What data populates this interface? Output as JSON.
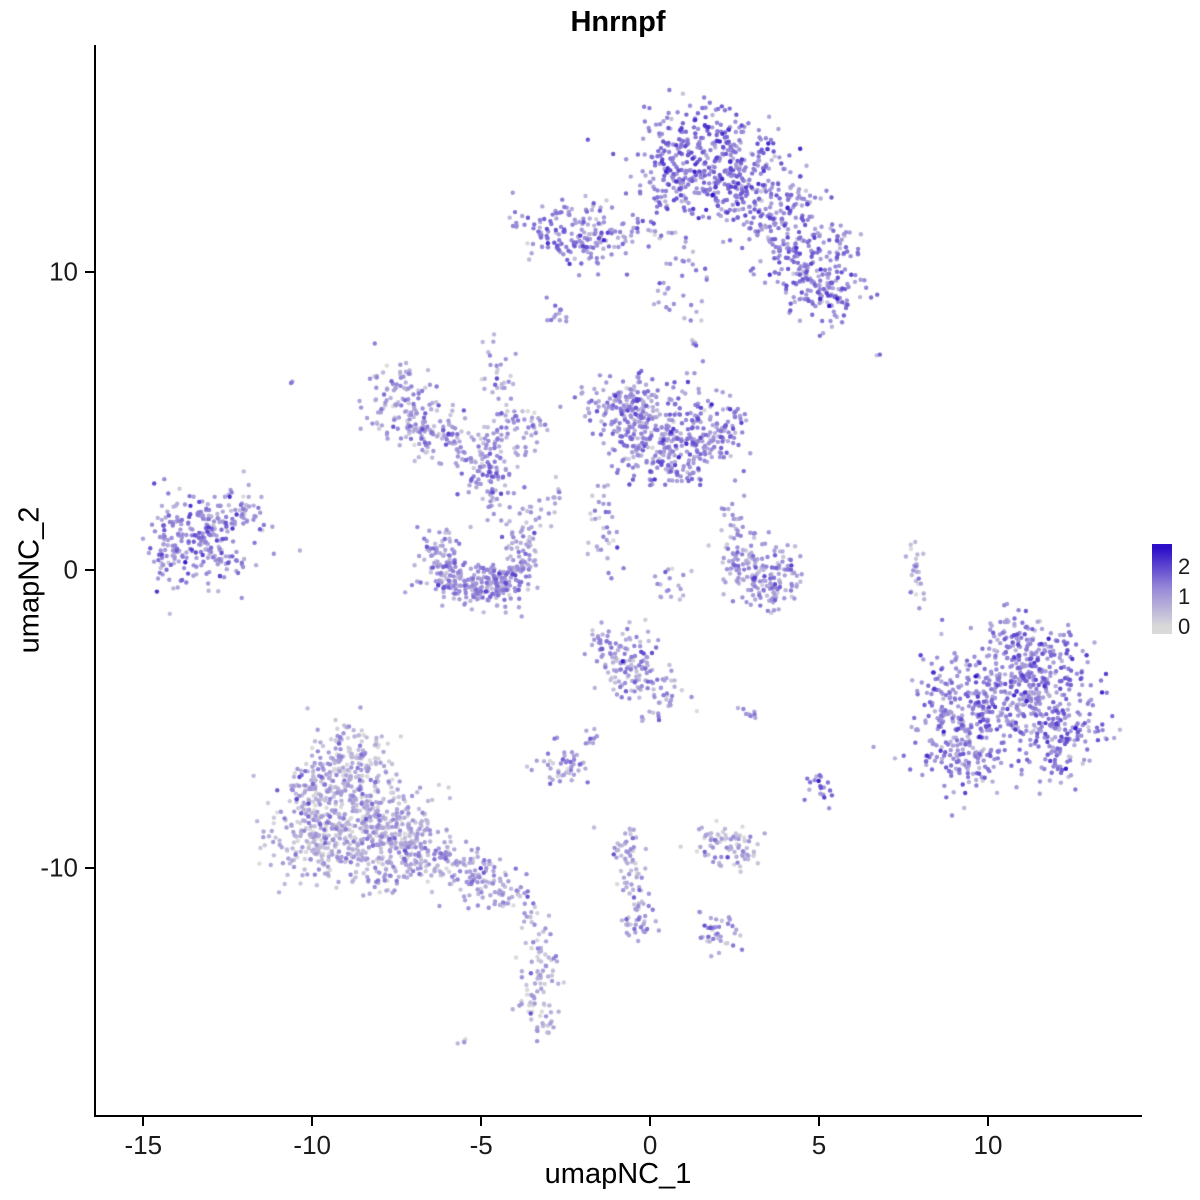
{
  "title": "Hnrnpf",
  "axes": {
    "x": {
      "label": "umapNC_1"
    },
    "y": {
      "label": "umapNC_2"
    }
  },
  "chart_data": {
    "type": "scatter",
    "title": "Hnrnpf",
    "xlabel": "umapNC_1",
    "ylabel": "umapNC_2",
    "xlim": [
      -16.4,
      14.5
    ],
    "ylim": [
      -18.3,
      17.6
    ],
    "x_ticks": [
      {
        "v": -15,
        "label": "-15"
      },
      {
        "v": -10,
        "label": "-10"
      },
      {
        "v": -5,
        "label": "-5"
      },
      {
        "v": 0,
        "label": "0"
      },
      {
        "v": 5,
        "label": "5"
      },
      {
        "v": 10,
        "label": "10"
      }
    ],
    "y_ticks": [
      {
        "v": 10,
        "label": "10"
      },
      {
        "v": 0,
        "label": "0"
      },
      {
        "v": -10,
        "label": "-10"
      }
    ],
    "grid": false,
    "legend_position": "right",
    "color_scale": {
      "low_label": "0",
      "high_label": "2",
      "stops": [
        {
          "v": 0.0,
          "color": "#D9D9D9"
        },
        {
          "v": 1.25,
          "color": "#9A8BD8"
        },
        {
          "v": 2.6,
          "color": "#2E0FC9"
        }
      ]
    },
    "legend": {
      "range": [
        -0.25,
        2.75
      ],
      "ticks": [
        {
          "v": 2,
          "label": "2"
        },
        {
          "v": 1,
          "label": "1"
        },
        {
          "v": 0,
          "label": "0"
        }
      ]
    },
    "point_radius": 2.2,
    "seed": 42,
    "cluster_format": "[center_x, center_y, sd_x, sd_y, n_points, mean_expression, sd_expression(optional, default 0.45), rotation_rad(optional, default 0)]",
    "clusters": [
      [
        1.6,
        14.0,
        1.05,
        0.75,
        300,
        1.45
      ],
      [
        2.2,
        13.0,
        0.6,
        0.5,
        90,
        1.35
      ],
      [
        0.7,
        12.6,
        0.45,
        0.45,
        50,
        1.3
      ],
      [
        3.1,
        12.3,
        0.7,
        0.55,
        90,
        1.3
      ],
      [
        3.9,
        11.3,
        0.6,
        0.7,
        90,
        1.25
      ],
      [
        4.7,
        10.1,
        0.55,
        0.7,
        100,
        1.3
      ],
      [
        5.3,
        9.2,
        0.5,
        0.55,
        80,
        1.4
      ],
      [
        4.4,
        12.4,
        0.35,
        0.4,
        30,
        1.2
      ],
      [
        5.6,
        10.9,
        0.3,
        0.4,
        25,
        1.2
      ],
      [
        -0.1,
        11.4,
        0.7,
        0.35,
        30,
        1.2
      ],
      [
        0.9,
        10.6,
        0.4,
        0.6,
        20,
        1.15
      ],
      [
        1.3,
        7.8,
        0.25,
        0.7,
        14,
        1.1
      ],
      [
        0.3,
        9.0,
        0.3,
        0.4,
        10,
        1.1
      ],
      [
        -2.4,
        11.3,
        0.8,
        0.5,
        140,
        1.3
      ],
      [
        -1.5,
        10.8,
        0.35,
        0.35,
        30,
        1.2
      ],
      [
        -2.8,
        8.6,
        0.15,
        0.2,
        12,
        1.15
      ],
      [
        -10.7,
        6.3,
        0.05,
        0.05,
        2,
        1.0
      ],
      [
        6.8,
        7.2,
        0.05,
        0.05,
        2,
        1.0
      ],
      [
        -7.4,
        5.8,
        0.55,
        0.6,
        100,
        1.0
      ],
      [
        -6.7,
        4.7,
        0.5,
        0.5,
        60,
        0.95
      ],
      [
        -5.7,
        4.2,
        0.55,
        0.4,
        55,
        0.95
      ],
      [
        -4.8,
        3.5,
        0.45,
        0.45,
        70,
        1.05
      ],
      [
        -4.3,
        4.9,
        0.3,
        0.6,
        35,
        0.9
      ],
      [
        -3.4,
        4.7,
        0.35,
        0.4,
        25,
        0.9
      ],
      [
        -4.6,
        6.4,
        0.25,
        0.65,
        25,
        0.9
      ],
      [
        -4.6,
        2.4,
        0.3,
        0.5,
        30,
        1.0
      ],
      [
        -2.7,
        2.4,
        0.2,
        0.5,
        12,
        0.9
      ],
      [
        -0.9,
        5.6,
        0.55,
        0.55,
        110,
        1.2
      ],
      [
        0.2,
        4.9,
        0.75,
        0.65,
        150,
        1.1
      ],
      [
        1.5,
        4.3,
        0.65,
        0.6,
        110,
        1.3
      ],
      [
        0.5,
        3.4,
        0.55,
        0.4,
        70,
        1.2
      ],
      [
        -0.5,
        4.2,
        0.4,
        0.4,
        50,
        1.05
      ],
      [
        2.3,
        4.9,
        0.35,
        0.4,
        35,
        1.25
      ],
      [
        -1.4,
        1.9,
        0.25,
        0.6,
        22,
        1.0
      ],
      [
        -1.2,
        0.6,
        0.2,
        0.4,
        12,
        1.0
      ],
      [
        -13.2,
        1.0,
        0.85,
        0.75,
        240,
        1.2
      ],
      [
        -12.1,
        2.2,
        0.35,
        0.4,
        30,
        1.1
      ],
      [
        -14.2,
        0.3,
        0.3,
        0.4,
        25,
        1.1
      ],
      [
        -6.3,
        0.7,
        0.28,
        0.5,
        45,
        1.0
      ],
      [
        -5.9,
        -0.2,
        0.45,
        0.4,
        80,
        1.05
      ],
      [
        -5.0,
        -0.55,
        0.5,
        0.35,
        110,
        1.1
      ],
      [
        -4.2,
        -0.25,
        0.4,
        0.4,
        75,
        1.0
      ],
      [
        -3.8,
        0.6,
        0.28,
        0.45,
        45,
        0.9
      ],
      [
        -3.5,
        1.7,
        0.2,
        0.4,
        15,
        0.9
      ],
      [
        0.5,
        -0.5,
        0.35,
        0.25,
        18,
        1.0,
        0.4,
        0.6
      ],
      [
        2.6,
        0.8,
        0.3,
        0.5,
        40,
        1.0
      ],
      [
        3.0,
        -0.1,
        0.4,
        0.5,
        70,
        1.1
      ],
      [
        3.6,
        -0.7,
        0.4,
        0.35,
        55,
        1.0
      ],
      [
        4.1,
        0.2,
        0.25,
        0.45,
        30,
        0.9
      ],
      [
        2.4,
        1.9,
        0.2,
        0.3,
        10,
        0.95
      ],
      [
        7.9,
        0.1,
        0.12,
        0.55,
        25,
        0.7
      ],
      [
        10.4,
        -4.3,
        1.25,
        1.05,
        400,
        1.3
      ],
      [
        11.6,
        -3.3,
        0.75,
        0.65,
        120,
        1.4
      ],
      [
        9.3,
        -6.2,
        0.7,
        0.6,
        120,
        1.25
      ],
      [
        12.3,
        -5.4,
        0.6,
        0.6,
        90,
        1.25
      ],
      [
        10.9,
        -2.3,
        0.7,
        0.4,
        55,
        1.15
      ],
      [
        8.6,
        -4.9,
        0.4,
        0.5,
        45,
        1.2
      ],
      [
        11.9,
        -6.6,
        0.4,
        0.4,
        35,
        1.2
      ],
      [
        -0.6,
        -3.2,
        0.55,
        0.55,
        105,
        1.0
      ],
      [
        0.3,
        -4.2,
        0.4,
        0.4,
        40,
        0.95
      ],
      [
        -1.2,
        -2.3,
        0.3,
        0.3,
        25,
        1.0
      ],
      [
        2.9,
        -4.9,
        0.15,
        0.15,
        10,
        0.95
      ],
      [
        -2.6,
        -6.6,
        0.4,
        0.3,
        45,
        0.95
      ],
      [
        -1.8,
        -5.9,
        0.15,
        0.25,
        8,
        0.9
      ],
      [
        -8.8,
        -8.3,
        1.15,
        0.95,
        380,
        0.65,
        0.5
      ],
      [
        -9.8,
        -9.2,
        0.7,
        0.6,
        140,
        0.6,
        0.45
      ],
      [
        -7.5,
        -9.0,
        0.75,
        0.6,
        150,
        0.7,
        0.5
      ],
      [
        -8.9,
        -6.1,
        0.55,
        0.65,
        110,
        0.75
      ],
      [
        -9.9,
        -7.2,
        0.5,
        0.5,
        80,
        0.6
      ],
      [
        -6.3,
        -9.7,
        0.55,
        0.45,
        85,
        0.8
      ],
      [
        -5.1,
        -10.4,
        0.5,
        0.4,
        70,
        0.85
      ],
      [
        -4.2,
        -10.9,
        0.3,
        0.3,
        30,
        0.9
      ],
      [
        -7.9,
        -10.2,
        0.4,
        0.35,
        45,
        0.7
      ],
      [
        2.3,
        -9.3,
        0.5,
        0.35,
        80,
        0.6
      ],
      [
        5.0,
        -7.3,
        0.22,
        0.25,
        20,
        1.5
      ],
      [
        -0.7,
        -9.5,
        0.25,
        0.4,
        35,
        0.85
      ],
      [
        -0.5,
        -10.8,
        0.22,
        0.5,
        30,
        0.9
      ],
      [
        -0.3,
        -11.9,
        0.3,
        0.3,
        28,
        0.9
      ],
      [
        2.0,
        -12.2,
        0.3,
        0.35,
        40,
        0.9
      ],
      [
        -3.2,
        -12.9,
        0.25,
        0.5,
        30,
        0.7
      ],
      [
        -3.4,
        -14.2,
        0.3,
        0.55,
        45,
        0.7
      ],
      [
        -3.1,
        -15.3,
        0.2,
        0.3,
        15,
        0.65
      ],
      [
        -5.5,
        -15.8,
        0.08,
        0.08,
        4,
        0.7
      ],
      [
        -3.6,
        -11.7,
        0.15,
        0.3,
        10,
        0.75
      ]
    ]
  }
}
